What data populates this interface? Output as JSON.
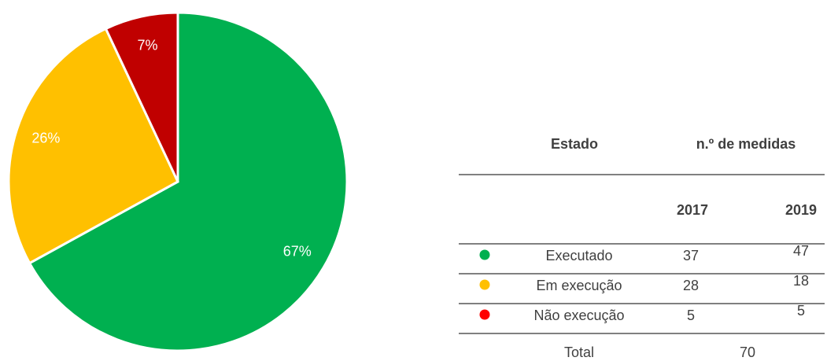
{
  "chart_data": {
    "type": "pie",
    "values": [
      67,
      26,
      7
    ],
    "value_labels": [
      "67%",
      "26%",
      "7%"
    ],
    "colors": [
      "#00b050",
      "#ffc000",
      "#c00000"
    ]
  },
  "table": {
    "header": [
      "Estado",
      "n.º de medidas"
    ],
    "years": [
      "2017",
      "2019"
    ],
    "rows": [
      {
        "label": "Executado",
        "color": "#00b050",
        "values": [
          37,
          47
        ]
      },
      {
        "label": "Em execução",
        "color": "#ffc000",
        "values": [
          28,
          18
        ]
      },
      {
        "label": "Não execução",
        "color": "#ff0000",
        "values": [
          5,
          5
        ]
      }
    ],
    "total": {
      "label": "Total",
      "value": 70
    }
  }
}
